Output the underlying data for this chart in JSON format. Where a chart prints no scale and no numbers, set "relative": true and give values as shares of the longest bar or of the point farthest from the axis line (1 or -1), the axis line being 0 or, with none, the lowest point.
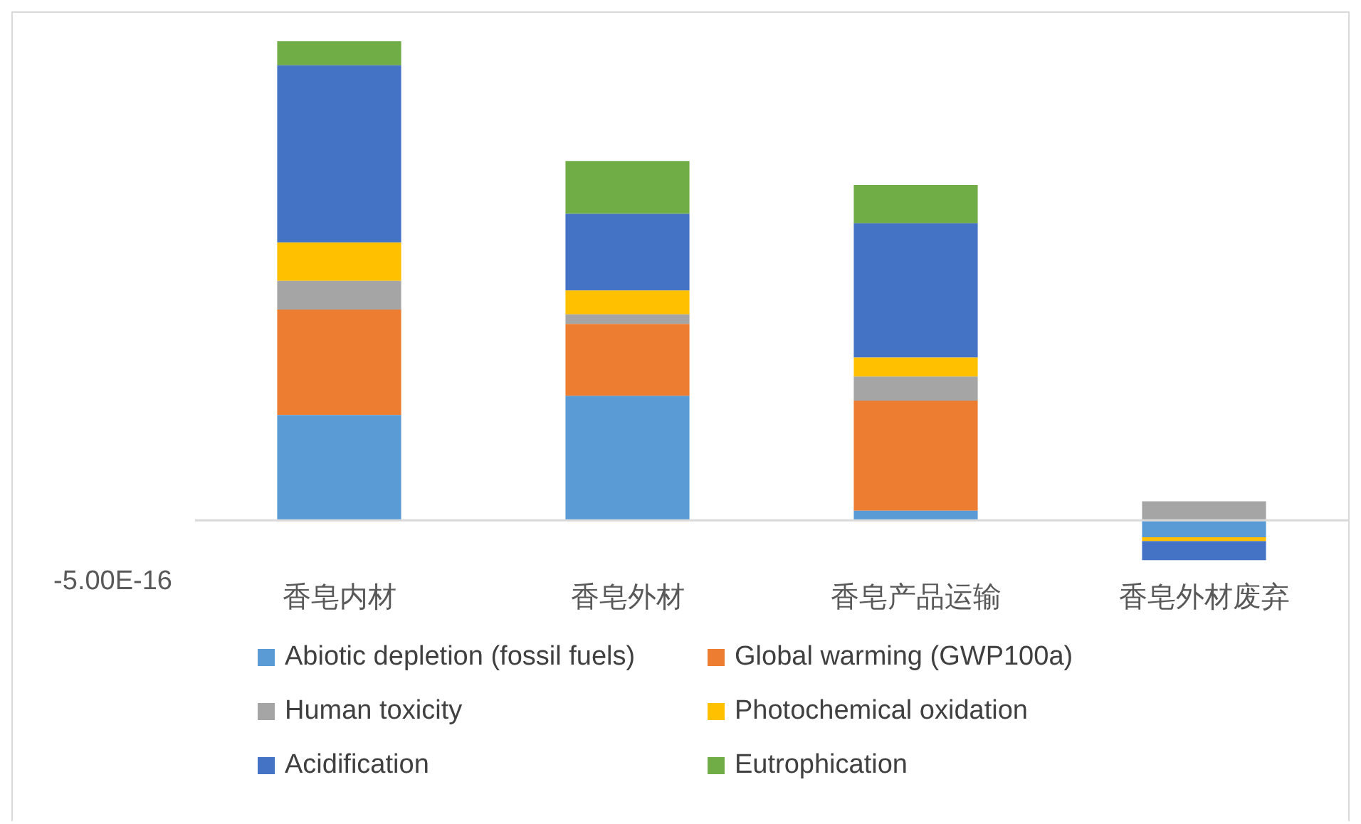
{
  "chart_data": {
    "type": "bar",
    "stacked": true,
    "relative": true,
    "legend": "bottom",
    "categories": [
      "香皂内材",
      "香皂外材",
      "香皂产品运输",
      "香皂外材废弃"
    ],
    "series": [
      {
        "name": "Abiotic depletion (fossil fuels)",
        "color": "#5b9bd5",
        "values": [
          0.22,
          0.26,
          0.02,
          -0.035
        ]
      },
      {
        "name": "Global warming (GWP100a)",
        "color": "#ed7d31",
        "values": [
          0.22,
          0.15,
          0.23,
          0
        ]
      },
      {
        "name": "Human toxicity",
        "color": "#a5a5a5",
        "values": [
          0.06,
          0.02,
          0.05,
          0.04
        ]
      },
      {
        "name": "Photochemical oxidation",
        "color": "#ffc000",
        "values": [
          0.08,
          0.05,
          0.04,
          -0.008
        ]
      },
      {
        "name": "Acidification",
        "color": "#4472c4",
        "values": [
          0.37,
          0.16,
          0.28,
          -0.04
        ]
      },
      {
        "name": "Eutrophication",
        "color": "#70ad47",
        "values": [
          0.05,
          0.11,
          0.08,
          0
        ]
      }
    ],
    "annotations": [
      "-5.00E-16"
    ]
  }
}
